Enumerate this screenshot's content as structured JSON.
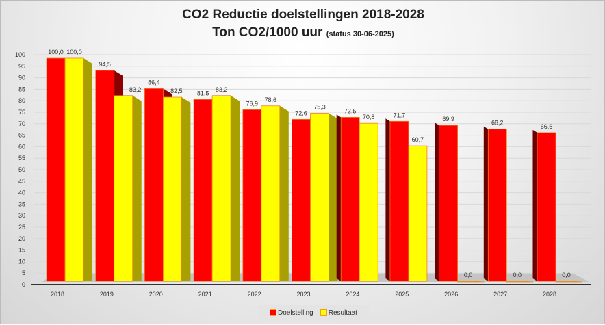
{
  "chart_data": {
    "type": "bar",
    "title": "CO2  Reductie doelstellingen 2018-2028",
    "subtitle": "Ton CO2/1000 uur",
    "subtitle_note": "(status 30-06-2025)",
    "categories": [
      "2018",
      "2019",
      "2020",
      "2021",
      "2022",
      "2023",
      "2024",
      "2025",
      "2026",
      "2027",
      "2028"
    ],
    "series": [
      {
        "name": "Doelstelling",
        "color": "#ff0000",
        "values": [
          100.0,
          94.5,
          86.4,
          81.5,
          76.9,
          72.6,
          73.5,
          71.7,
          69.9,
          68.2,
          66.6
        ]
      },
      {
        "name": "Resultaat",
        "color": "#ffff00",
        "values": [
          100.0,
          83.2,
          82.5,
          83.2,
          78.6,
          75.3,
          70.8,
          60.7,
          0.0,
          0.0,
          0.0
        ]
      }
    ],
    "ylim": [
      0,
      100
    ],
    "yticks": [
      0,
      5,
      10,
      15,
      20,
      25,
      30,
      35,
      40,
      45,
      50,
      55,
      60,
      65,
      70,
      75,
      80,
      85,
      90,
      95,
      100
    ],
    "grid": true,
    "legend_position": "bottom",
    "style": "3d-clustered-column"
  }
}
